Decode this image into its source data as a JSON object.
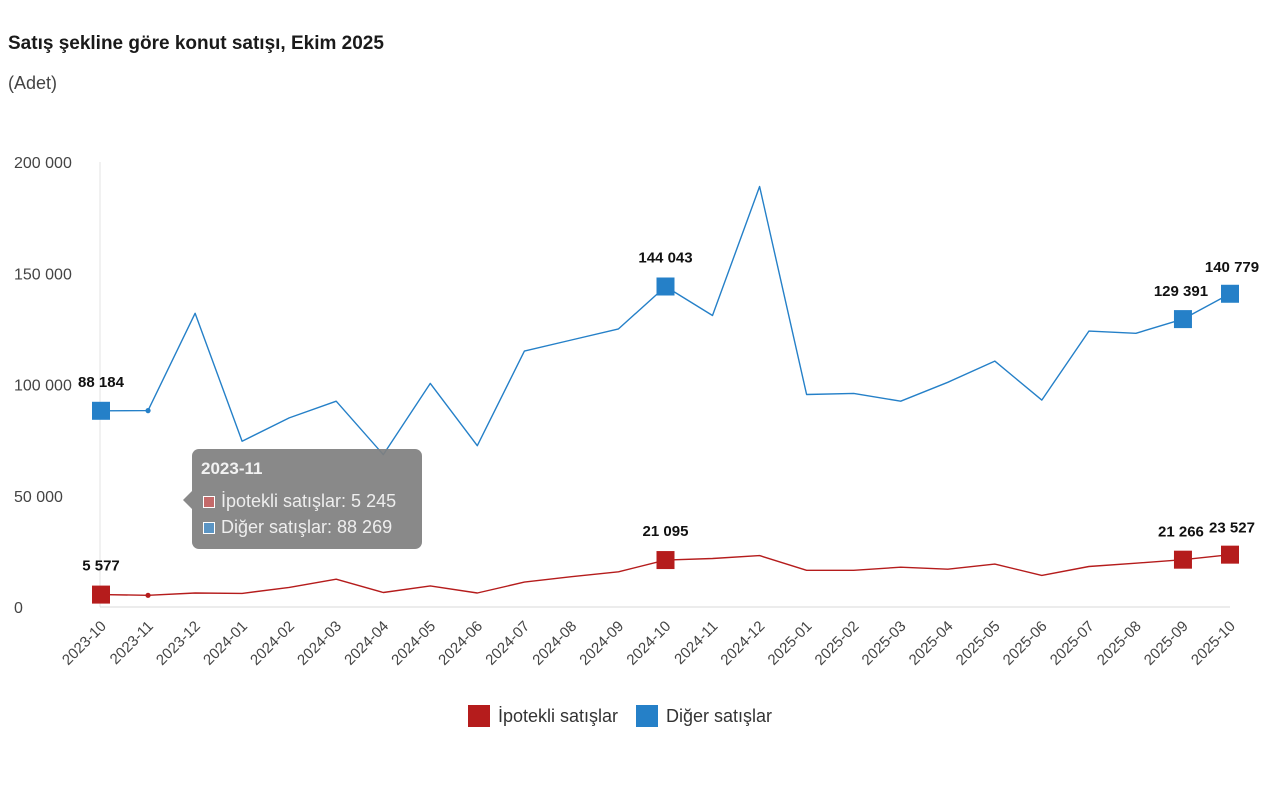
{
  "title": "Satış şekline göre konut satışı, Ekim 2025",
  "subtitle": "(Adet)",
  "colors": {
    "ipotekli": "#b51c1c",
    "diger": "#2580c8"
  },
  "chart_data": {
    "type": "line",
    "title": "Satış şekline göre konut satışı, Ekim 2025",
    "ylabel": "(Adet)",
    "ylim": [
      0,
      200000
    ],
    "yticks": [
      0,
      50000,
      100000,
      150000,
      200000
    ],
    "ytick_labels": [
      "0",
      "50 000",
      "100 000",
      "150 000",
      "200 000"
    ],
    "x": [
      "2023-10",
      "2023-11",
      "2023-12",
      "2024-01",
      "2024-02",
      "2024-03",
      "2024-04",
      "2024-05",
      "2024-06",
      "2024-07",
      "2024-08",
      "2024-09",
      "2024-10",
      "2024-11",
      "2024-12",
      "2025-01",
      "2025-02",
      "2025-03",
      "2025-04",
      "2025-05",
      "2025-06",
      "2025-07",
      "2025-08",
      "2025-09",
      "2025-10"
    ],
    "series": [
      {
        "name": "İpotekli satışlar",
        "color": "#b51c1c",
        "values": [
          5577,
          5245,
          6300,
          6100,
          8800,
          12500,
          6500,
          9500,
          6300,
          11200,
          13600,
          15800,
          21095,
          21800,
          23100,
          16500,
          16500,
          17900,
          17000,
          19300,
          14200,
          18200,
          19700,
          21266,
          23527
        ],
        "labels": [
          {
            "index": 0,
            "text": "5 577"
          },
          {
            "index": 12,
            "text": "21 095"
          },
          {
            "index": 23,
            "text": "21 266"
          },
          {
            "index": 24,
            "text": "23 527"
          }
        ]
      },
      {
        "name": "Diğer satışlar",
        "color": "#2580c8",
        "values": [
          88184,
          88269,
          132000,
          74500,
          85000,
          92500,
          68500,
          100500,
          72500,
          115000,
          120000,
          125000,
          144043,
          131000,
          189000,
          95500,
          96000,
          92500,
          101000,
          110500,
          93000,
          124000,
          123000,
          129391,
          140779
        ],
        "labels": [
          {
            "index": 0,
            "text": "88 184"
          },
          {
            "index": 12,
            "text": "144 043"
          },
          {
            "index": 23,
            "text": "129 391"
          },
          {
            "index": 24,
            "text": "140 779"
          }
        ]
      }
    ],
    "highlight_indices": [
      0,
      12,
      23,
      24
    ],
    "tooltip": {
      "title": "2023-11",
      "rows": [
        "İpotekli satışlar: 5 245",
        "Diğer satışlar: 88 269"
      ]
    },
    "legend": [
      "İpotekli satışlar",
      "Diğer satışlar"
    ]
  }
}
